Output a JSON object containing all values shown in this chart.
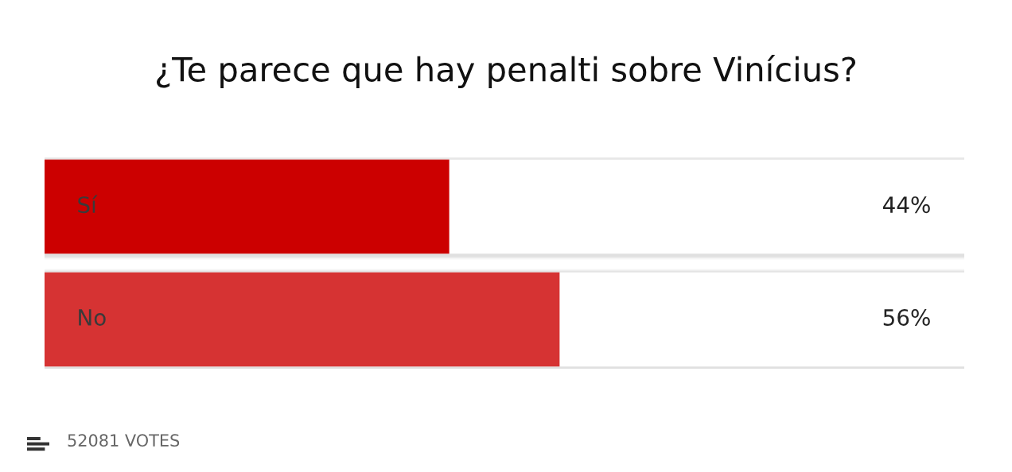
{
  "chart_data": {
    "type": "bar",
    "orientation": "horizontal",
    "title": "¿Te parece que hay penalti sobre Vinícius?",
    "categories": [
      "Sí",
      "No"
    ],
    "values": [
      44,
      56
    ],
    "colors": [
      "#cc0000",
      "#d63333"
    ],
    "value_labels": [
      "44%",
      "56%"
    ],
    "xlim": [
      0,
      100
    ],
    "annotations": [
      "52081 VOTES"
    ]
  }
}
